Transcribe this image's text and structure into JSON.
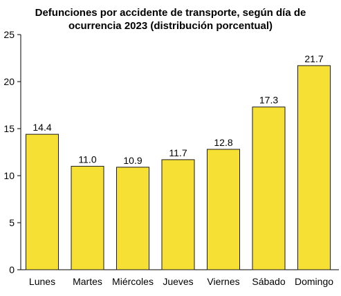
{
  "chart_data": {
    "type": "bar",
    "title_lines": [
      "Defunciones por accidente de transporte, según día de",
      "ocurrencia 2023 (distribución porcentual)"
    ],
    "categories": [
      "Lunes",
      "Martes",
      "Miércoles",
      "Jueves",
      "Viernes",
      "Sábado",
      "Domingo"
    ],
    "values": [
      14.4,
      11.0,
      10.9,
      11.7,
      12.8,
      17.3,
      21.7
    ],
    "value_labels": [
      "14.4",
      "11.0",
      "10.9",
      "11.7",
      "12.8",
      "17.3",
      "21.7"
    ],
    "ylim": [
      0,
      25
    ],
    "yticks": [
      0,
      5,
      10,
      15,
      20,
      25
    ],
    "xlabel": "",
    "ylabel": "",
    "grid": false,
    "legend": "none",
    "bar_color": "#f7e034",
    "bar_edge_color": "#1a1a1a"
  }
}
